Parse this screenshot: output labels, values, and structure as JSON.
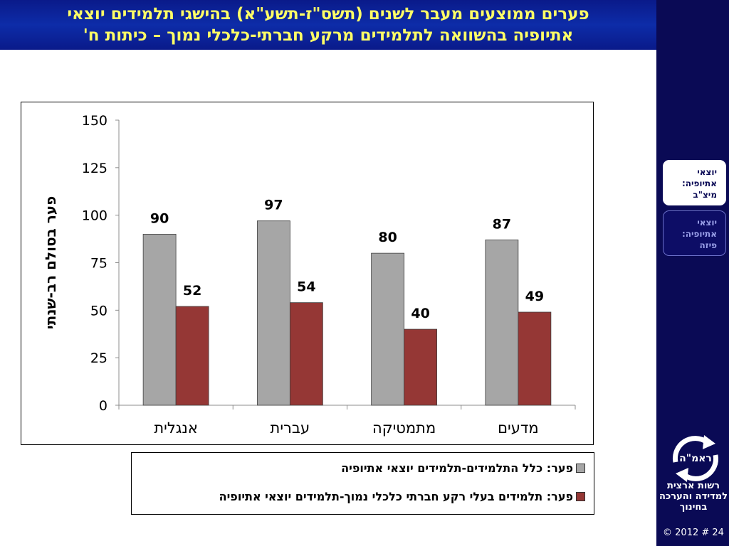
{
  "header": {
    "title_line1": "פערים ממוצעים מעבר לשנים (תשס\"ז-תשע\"א) בהישגי תלמידים יוצאי",
    "title_line2": "אתיופיה בהשוואה לתלמידים מרקע חברתי-כלכלי נמוך – כיתות ח'"
  },
  "nav": {
    "items": [
      {
        "label": "יוצאי אתיופיה: מיצ\"ב",
        "active": true
      },
      {
        "label": "יוצאי אתיופיה: פיזה",
        "active": false
      }
    ]
  },
  "footer": {
    "logo_text": "ראמ\"ה",
    "org_name": "רשות ארצית למדידה והערכה בחינוך",
    "copyright": "© 2012 # 24"
  },
  "colors": {
    "series_gray": "#a6a6a6",
    "series_red": "#953735",
    "title_bg": "#0d2ca8",
    "title_text": "#ffff66",
    "rail": "#0a0a55"
  },
  "chart_data": {
    "type": "bar",
    "categories": [
      "אנגלית",
      "עברית",
      "מתמטיקה",
      "מדעים"
    ],
    "series": [
      {
        "name": "פער: כלל התלמידים-תלמידים יוצאי אתיופיה",
        "values": [
          90,
          97,
          80,
          87
        ],
        "color": "#a6a6a6"
      },
      {
        "name": "פער: תלמידים בעלי רקע חברתי כלכלי נמוך-תלמידים יוצאי אתיופיה",
        "values": [
          52,
          54,
          40,
          49
        ],
        "color": "#953735"
      }
    ],
    "ylabel": "פער בסולם רב-שנתי",
    "ylim": [
      0,
      150
    ],
    "yticks": [
      0,
      25,
      50,
      75,
      100,
      125,
      150
    ],
    "grid": false,
    "legend_position": "bottom"
  }
}
